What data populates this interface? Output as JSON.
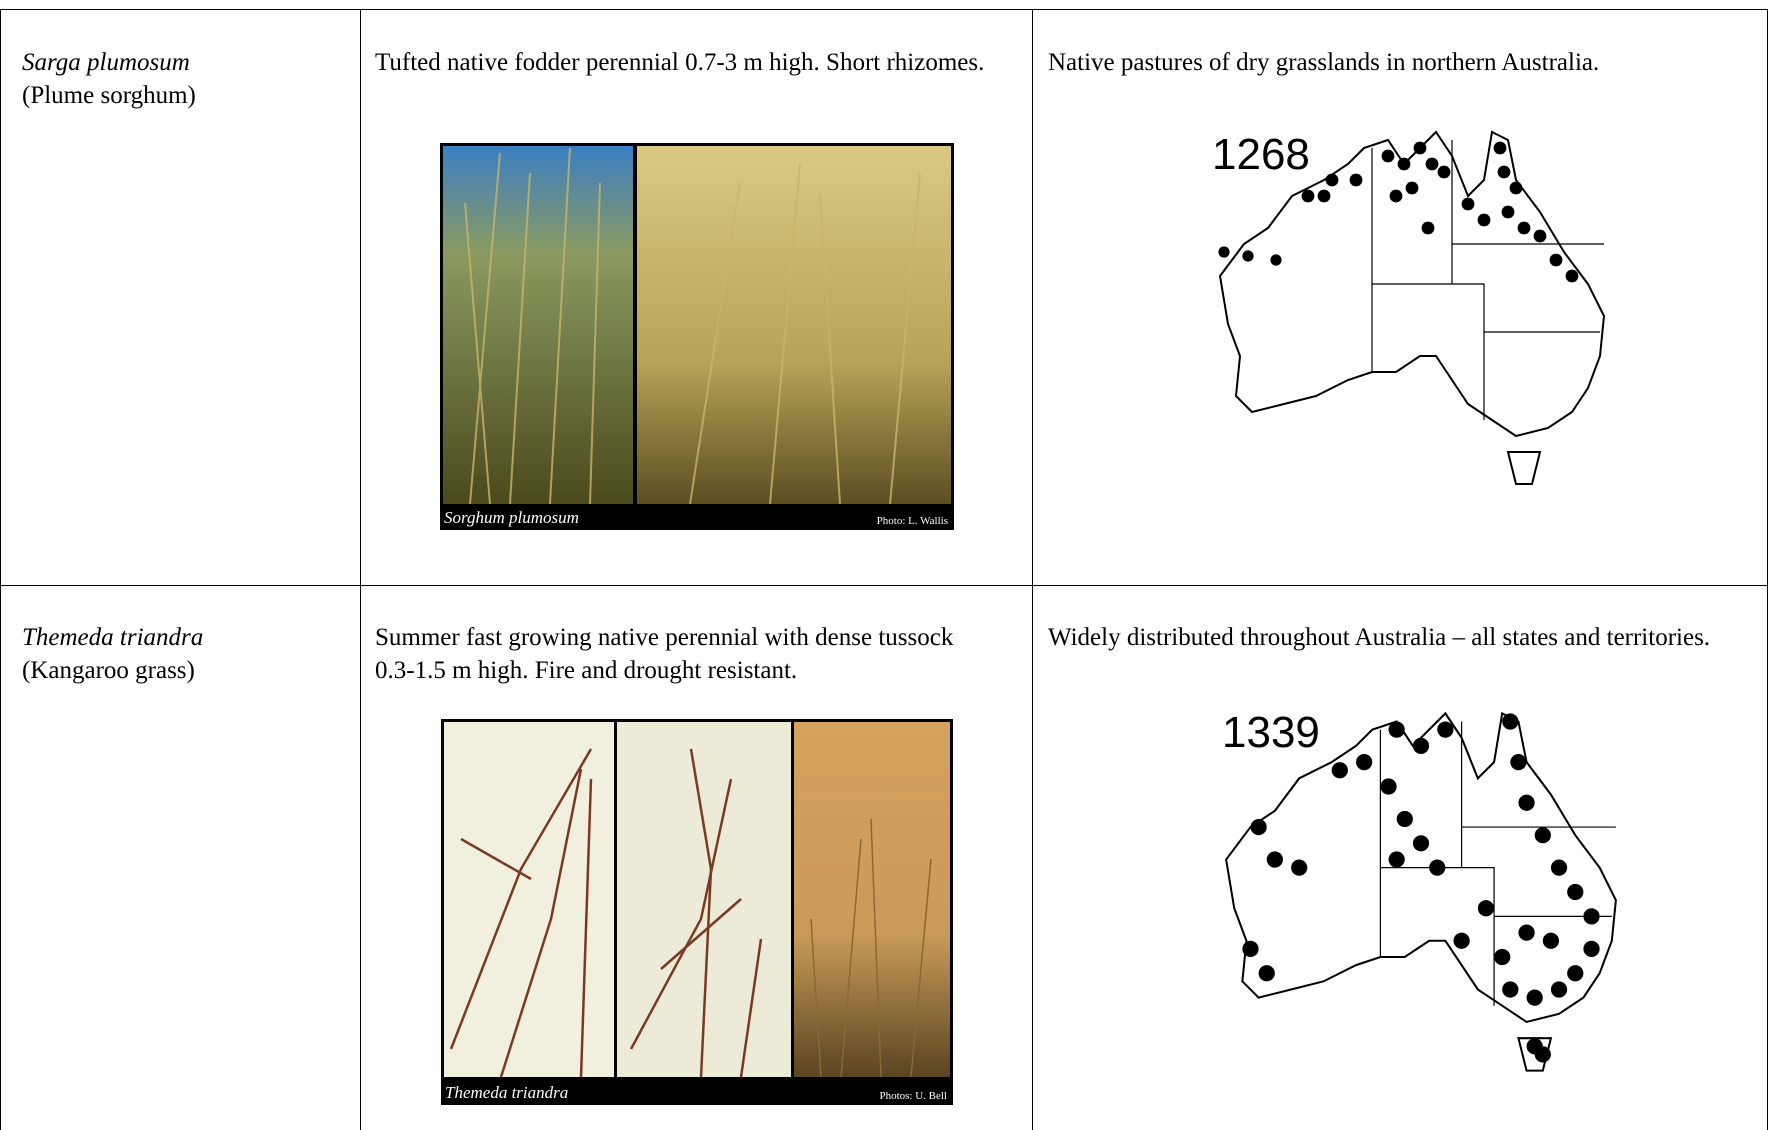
{
  "table": {
    "rows": [
      {
        "species": "Sarga plumosum",
        "common_name": "(Plume sorghum)",
        "description": "Tufted native fodder perennial 0.7-3 m high. Short rhizomes.",
        "photo": {
          "caption": "Sorghum plumosum",
          "credit": "Photo: L. Wallis"
        },
        "distribution": "Native pastures of dry grasslands in northern Australia.",
        "map_label": "1268"
      },
      {
        "species": "Themeda triandra",
        "common_name": "(Kangaroo grass)",
        "description": "Summer fast growing native perennial with dense tussock 0.3-1.5 m high. Fire and drought resistant.",
        "photo": {
          "caption": "Themeda triandra",
          "credit": "Photos: U. Bell"
        },
        "distribution": "Widely distributed throughout Australia – all states and territories.",
        "map_label": "1339"
      }
    ]
  }
}
